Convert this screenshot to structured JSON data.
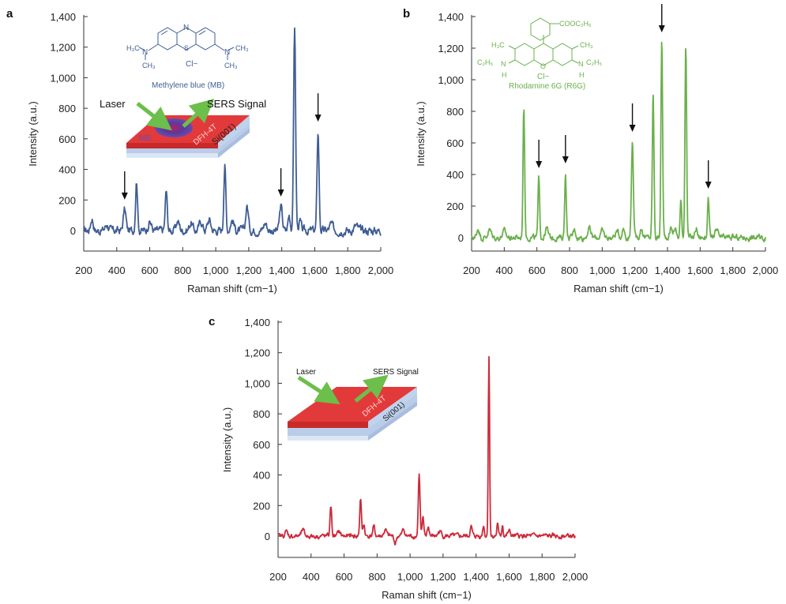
{
  "chart_data": [
    {
      "panel": "a",
      "type": "line",
      "color": "#3f5d94",
      "xlabel": "Raman shift (cm−1)",
      "ylabel": "Intensity (a.u.)",
      "xlim": [
        200,
        2000
      ],
      "ylim": [
        -120,
        1400
      ],
      "xticks": [
        200,
        400,
        600,
        800,
        1000,
        1200,
        1400,
        1600,
        1800,
        2000
      ],
      "xtick_labels": [
        "200",
        "400",
        "600",
        "800",
        "1,000",
        "1,200",
        "1,400",
        "1,600",
        "1,800",
        "2,000"
      ],
      "yticks": [
        0,
        200,
        400,
        600,
        800,
        1000,
        1200,
        1400
      ],
      "ytick_labels": [
        "0",
        "200",
        "400",
        "600",
        "800",
        "1,000",
        "1,200",
        "1,400"
      ],
      "peaks": [
        [
          250,
          80,
          8
        ],
        [
          340,
          40,
          10
        ],
        [
          448,
          140,
          8
        ],
        [
          520,
          330,
          6
        ],
        [
          600,
          60,
          10
        ],
        [
          700,
          260,
          6
        ],
        [
          770,
          60,
          10
        ],
        [
          850,
          50,
          10
        ],
        [
          910,
          60,
          10
        ],
        [
          960,
          70,
          10
        ],
        [
          1055,
          430,
          6
        ],
        [
          1100,
          70,
          10
        ],
        [
          1190,
          160,
          8
        ],
        [
          1300,
          50,
          10
        ],
        [
          1395,
          160,
          8
        ],
        [
          1445,
          100,
          7
        ],
        [
          1478,
          1340,
          6
        ],
        [
          1510,
          60,
          7
        ],
        [
          1620,
          650,
          6
        ],
        [
          1700,
          40,
          10
        ],
        [
          1850,
          30,
          12
        ]
      ],
      "arrows_at": [
        448,
        1395,
        1620
      ],
      "inset": {
        "molecule_name": "Methylene blue (MB)",
        "counter_ion": "Cl−",
        "laser_label": "Laser",
        "sers_label": "SERS Signal",
        "spot_label": "MB",
        "layer_label": "DFH-4T",
        "substrate_label": "Si(001)"
      }
    },
    {
      "panel": "b",
      "type": "line",
      "color": "#6bb04c",
      "xlabel": "Raman shift (cm−1)",
      "ylabel": "Intensity (a.u.)",
      "xlim": [
        200,
        2000
      ],
      "ylim": [
        -80,
        1400
      ],
      "xticks": [
        200,
        400,
        600,
        800,
        1000,
        1200,
        1400,
        1600,
        1800,
        2000
      ],
      "xtick_labels": [
        "200",
        "400",
        "600",
        "800",
        "1,000",
        "1,200",
        "1,400",
        "1,600",
        "1,800",
        "2,000"
      ],
      "yticks": [
        0,
        200,
        400,
        600,
        800,
        1000,
        1200,
        1400
      ],
      "ytick_labels": [
        "0",
        "200",
        "400",
        "600",
        "800",
        "1,000",
        "1,200",
        "1,400"
      ],
      "peaks": [
        [
          240,
          60,
          8
        ],
        [
          310,
          50,
          10
        ],
        [
          400,
          40,
          10
        ],
        [
          520,
          840,
          5
        ],
        [
          612,
          380,
          5
        ],
        [
          660,
          60,
          8
        ],
        [
          775,
          410,
          5
        ],
        [
          830,
          50,
          8
        ],
        [
          920,
          60,
          10
        ],
        [
          1000,
          40,
          10
        ],
        [
          1090,
          40,
          10
        ],
        [
          1130,
          60,
          8
        ],
        [
          1185,
          610,
          6
        ],
        [
          1240,
          60,
          8
        ],
        [
          1312,
          920,
          5
        ],
        [
          1365,
          1260,
          5
        ],
        [
          1420,
          60,
          8
        ],
        [
          1445,
          60,
          8
        ],
        [
          1482,
          230,
          5
        ],
        [
          1512,
          1240,
          5
        ],
        [
          1576,
          60,
          7
        ],
        [
          1650,
          250,
          5
        ],
        [
          1700,
          40,
          10
        ]
      ],
      "arrows_at": [
        612,
        775,
        1185,
        1365,
        1650
      ],
      "inset": {
        "molecule_name": "Rhodamine 6G (R6G)",
        "counter_ion": "Cl−",
        "group_ester": "COOC₂H₅",
        "group_methyl_left": "H₃C",
        "group_methyl_right": "CH₃",
        "group_ethyl_left": "C₂H₅",
        "group_ethyl_right": "C₂H₅",
        "atom_n": "N",
        "atom_h": "H",
        "atom_o": "O"
      }
    },
    {
      "panel": "c",
      "type": "line",
      "color": "#cc2a3b",
      "xlabel": "Raman shift (cm−1)",
      "ylabel": "Intensity (a.u.)",
      "xlim": [
        200,
        2000
      ],
      "ylim": [
        -80,
        1400
      ],
      "xticks": [
        200,
        400,
        600,
        800,
        1000,
        1200,
        1400,
        1600,
        1800,
        2000
      ],
      "xtick_labels": [
        "200",
        "400",
        "600",
        "800",
        "1,000",
        "1,200",
        "1,400",
        "1,600",
        "1,800",
        "2,000"
      ],
      "yticks": [
        0,
        200,
        400,
        600,
        800,
        1000,
        1200,
        1400
      ],
      "ytick_labels": [
        "0",
        "200",
        "400",
        "600",
        "800",
        "1,000",
        "1,200",
        "1,400"
      ],
      "peaks": [
        [
          250,
          30,
          8
        ],
        [
          350,
          40,
          8
        ],
        [
          520,
          200,
          5
        ],
        [
          570,
          30,
          8
        ],
        [
          700,
          250,
          5
        ],
        [
          720,
          80,
          5
        ],
        [
          780,
          60,
          6
        ],
        [
          850,
          40,
          8
        ],
        [
          910,
          -50,
          6
        ],
        [
          960,
          40,
          8
        ],
        [
          1055,
          410,
          5
        ],
        [
          1078,
          110,
          5
        ],
        [
          1110,
          60,
          6
        ],
        [
          1180,
          30,
          10
        ],
        [
          1370,
          60,
          6
        ],
        [
          1445,
          70,
          5
        ],
        [
          1478,
          1180,
          4
        ],
        [
          1530,
          90,
          4
        ],
        [
          1560,
          80,
          4
        ],
        [
          1600,
          30,
          8
        ]
      ],
      "arrows_at": [],
      "inset": {
        "laser_label": "Laser",
        "sers_label": "SERS Signal",
        "layer_label": "DFH-4T",
        "substrate_label": "Si(001)"
      }
    }
  ],
  "panel_labels": [
    "a",
    "b",
    "c"
  ]
}
